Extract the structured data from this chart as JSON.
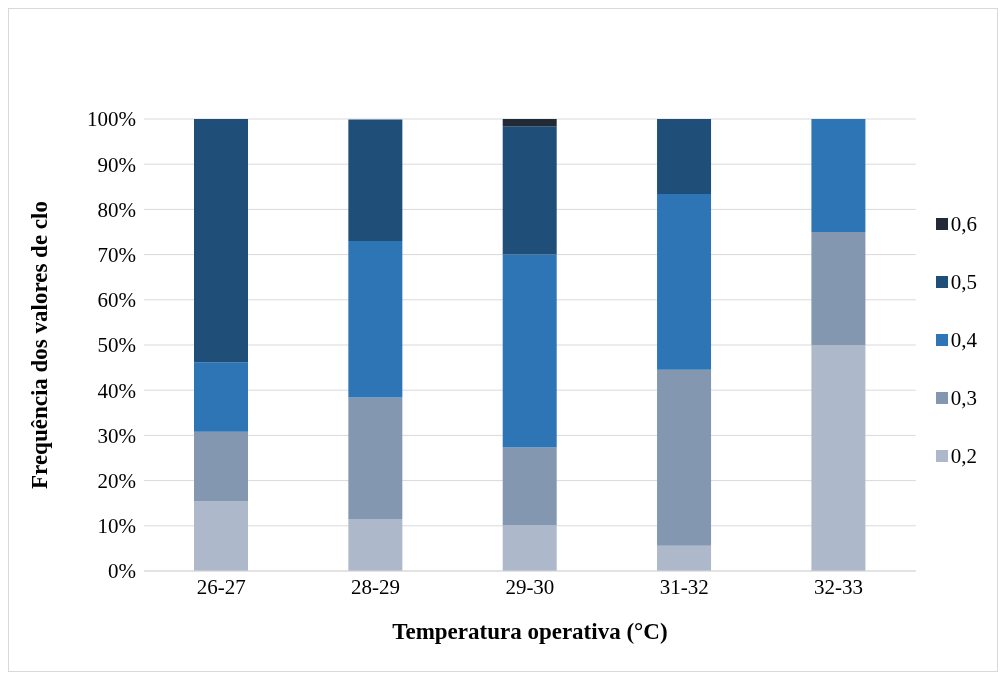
{
  "chart_data": {
    "type": "bar",
    "stacked": true,
    "xlabel": "Temperatura operativa (°C)",
    "ylabel": "Frequência dos valores de clo",
    "categories": [
      "26-27",
      "28-29",
      "29-30",
      "31-32",
      "32-33"
    ],
    "series": [
      {
        "name": "0,2",
        "color": "#adb9ca",
        "values": [
          15.4,
          11.5,
          10.1,
          5.6,
          50
        ]
      },
      {
        "name": "0,3",
        "color": "#8497b0",
        "values": [
          15.4,
          26.9,
          17.2,
          38.9,
          25
        ]
      },
      {
        "name": "0,4",
        "color": "#2e75b6",
        "values": [
          15.4,
          34.6,
          42.7,
          38.9,
          25
        ]
      },
      {
        "name": "0,5",
        "color": "#1f4e79",
        "values": [
          53.8,
          26.9,
          28.4,
          16.7,
          0
        ]
      },
      {
        "name": "0,6",
        "color": "#222a35",
        "values": [
          0,
          0,
          1.6,
          0,
          0
        ]
      }
    ],
    "ylim": [
      0,
      100
    ],
    "yticks": [
      {
        "value": 0,
        "label": "0%"
      },
      {
        "value": 10,
        "label": "10%"
      },
      {
        "value": 20,
        "label": "20%"
      },
      {
        "value": 30,
        "label": "30%"
      },
      {
        "value": 40,
        "label": "40%"
      },
      {
        "value": 50,
        "label": "50%"
      },
      {
        "value": 60,
        "label": "60%"
      },
      {
        "value": 70,
        "label": "70%"
      },
      {
        "value": 80,
        "label": "80%"
      },
      {
        "value": 90,
        "label": "90%"
      },
      {
        "value": 100,
        "label": "100%"
      }
    ],
    "grid": "y",
    "legend": "right"
  }
}
